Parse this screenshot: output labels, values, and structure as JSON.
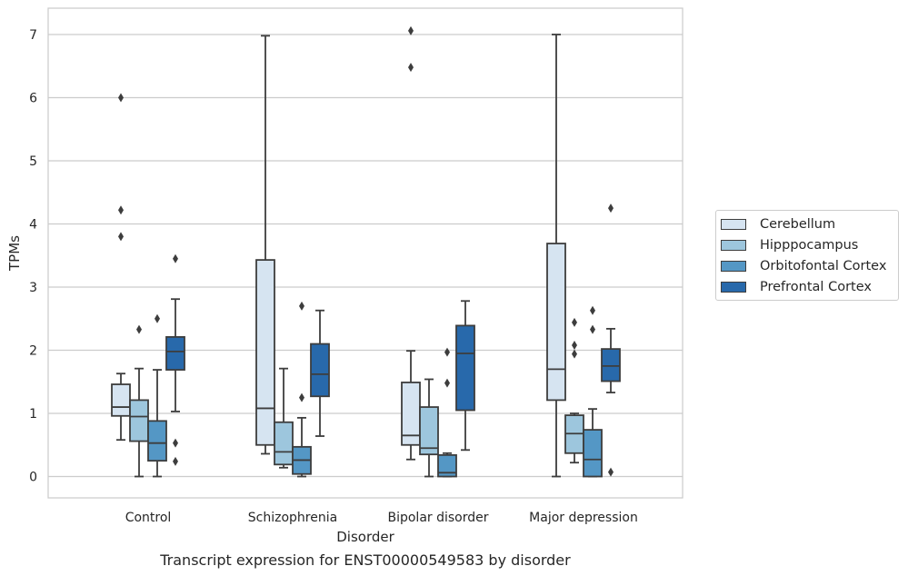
{
  "chart_data": {
    "type": "box",
    "caption": "Transcript expression for ENST00000549583 by disorder",
    "xlabel": "Disorder",
    "ylabel": "TPMs",
    "ylim": [
      -0.35,
      7.4
    ],
    "yticks": [
      "0",
      "1",
      "2",
      "3",
      "4",
      "5",
      "6",
      "7"
    ],
    "grid": "horizontal",
    "legend_position": "right",
    "categories": [
      "Control",
      "Schizophrenia",
      "Bipolar disorder",
      "Major depression"
    ],
    "series": [
      {
        "name": "Cerebellum",
        "color": "#d6e4f1",
        "boxes": [
          {
            "whisker_low": 0.58,
            "q1": 0.96,
            "median": 1.1,
            "q3": 1.46,
            "whisker_high": 1.63,
            "outliers": [
              3.8,
              4.22,
              6.0
            ]
          },
          {
            "whisker_low": 0.36,
            "q1": 0.5,
            "median": 1.08,
            "q3": 3.43,
            "whisker_high": 6.98,
            "outliers": []
          },
          {
            "whisker_low": 0.27,
            "q1": 0.5,
            "median": 0.65,
            "q3": 1.49,
            "whisker_high": 1.99,
            "outliers": [
              6.48,
              7.06
            ]
          },
          {
            "whisker_low": 0.0,
            "q1": 1.21,
            "median": 1.7,
            "q3": 3.69,
            "whisker_high": 7.0,
            "outliers": []
          }
        ]
      },
      {
        "name": "Hipppocampus",
        "color": "#9dc6dd",
        "boxes": [
          {
            "whisker_low": 0.0,
            "q1": 0.56,
            "median": 0.95,
            "q3": 1.21,
            "whisker_high": 1.71,
            "outliers": [
              2.33
            ]
          },
          {
            "whisker_low": 0.14,
            "q1": 0.19,
            "median": 0.39,
            "q3": 0.86,
            "whisker_high": 1.71,
            "outliers": []
          },
          {
            "whisker_low": 0.0,
            "q1": 0.35,
            "median": 0.45,
            "q3": 1.1,
            "whisker_high": 1.54,
            "outliers": []
          },
          {
            "whisker_low": 0.22,
            "q1": 0.37,
            "median": 0.68,
            "q3": 0.97,
            "whisker_high": 1.0,
            "outliers": [
              1.94,
              2.08,
              2.44
            ]
          }
        ]
      },
      {
        "name": "Orbitofontal Cortex",
        "color": "#5497c5",
        "boxes": [
          {
            "whisker_low": 0.0,
            "q1": 0.25,
            "median": 0.53,
            "q3": 0.88,
            "whisker_high": 1.69,
            "outliers": [
              2.5
            ]
          },
          {
            "whisker_low": 0.0,
            "q1": 0.04,
            "median": 0.26,
            "q3": 0.47,
            "whisker_high": 0.93,
            "outliers": [
              1.25,
              2.7
            ]
          },
          {
            "whisker_low": 0.0,
            "q1": 0.0,
            "median": 0.06,
            "q3": 0.34,
            "whisker_high": 0.37,
            "outliers": [
              1.48,
              1.97
            ]
          },
          {
            "whisker_low": 0.0,
            "q1": 0.0,
            "median": 0.27,
            "q3": 0.74,
            "whisker_high": 1.07,
            "outliers": [
              2.33,
              2.63
            ]
          }
        ]
      },
      {
        "name": "Prefrontal Cortex",
        "color": "#2869ab",
        "boxes": [
          {
            "whisker_low": 1.03,
            "q1": 1.69,
            "median": 1.98,
            "q3": 2.21,
            "whisker_high": 2.81,
            "outliers": [
              0.24,
              0.53,
              3.45
            ]
          },
          {
            "whisker_low": 0.64,
            "q1": 1.27,
            "median": 1.62,
            "q3": 2.1,
            "whisker_high": 2.63,
            "outliers": []
          },
          {
            "whisker_low": 0.42,
            "q1": 1.05,
            "median": 1.95,
            "q3": 2.39,
            "whisker_high": 2.78,
            "outliers": []
          },
          {
            "whisker_low": 1.33,
            "q1": 1.51,
            "median": 1.75,
            "q3": 2.02,
            "whisker_high": 2.34,
            "outliers": [
              0.07,
              4.25
            ]
          }
        ]
      }
    ]
  }
}
